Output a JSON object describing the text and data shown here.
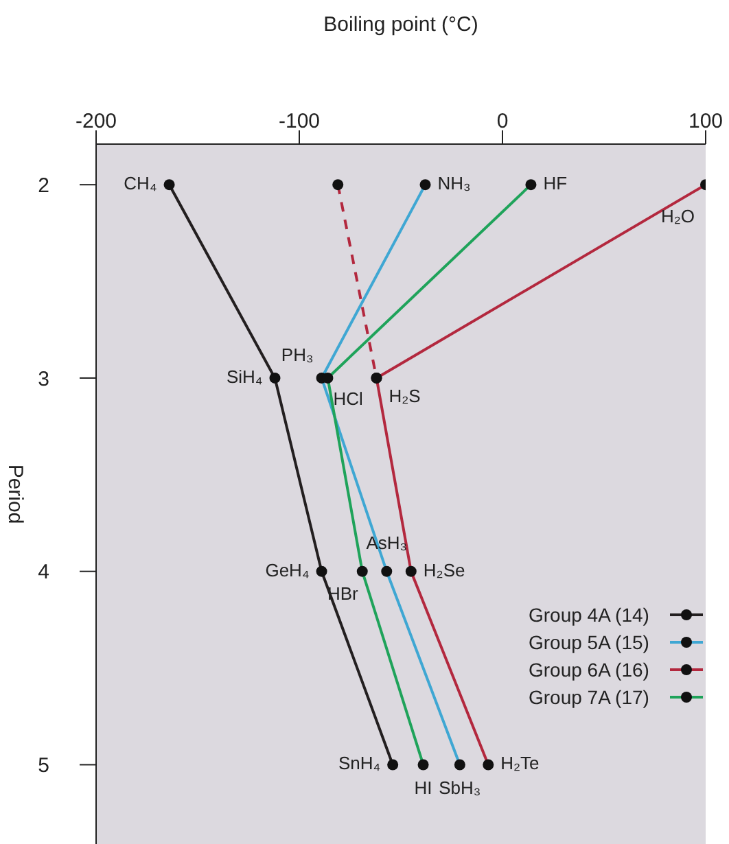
{
  "chart_data": {
    "type": "line",
    "orientation": "horizontal",
    "xlabel": "Boiling point (°C)",
    "ylabel": "Period",
    "categories": [
      "2",
      "3",
      "4",
      "5"
    ],
    "xlim": [
      -200,
      100
    ],
    "xticks": [
      -200,
      -100,
      0,
      100
    ],
    "grid": false,
    "legend": "bottom right",
    "marker": "circle",
    "series": [
      {
        "name": "Group 4A (14)",
        "color": "#231f20",
        "values": [
          -164,
          -112,
          -89,
          -54
        ]
      },
      {
        "name": "Group 5A (15)",
        "color": "#3fa7d3",
        "values": [
          -38,
          -89,
          -57,
          -21
        ]
      },
      {
        "name": "Group 6A (16)",
        "color": "#b3283e",
        "values": [
          100,
          -62,
          -45,
          -7
        ]
      },
      {
        "name": "Group 7A (17)",
        "color": "#1fa35a",
        "values": [
          14,
          -86,
          -69,
          -39
        ]
      },
      {
        "color": "#b3283e",
        "values": [
          -81,
          -62,
          null,
          null
        ],
        "line_style": "dashed"
      }
    ],
    "annotations": [
      {
        "text": "CH₄",
        "x": -164,
        "y": "2"
      },
      {
        "text": "NH₃",
        "x": -38,
        "y": "2"
      },
      {
        "text": "HF",
        "x": 14,
        "y": "2"
      },
      {
        "text": "H₂O",
        "x": 100,
        "y": "2"
      },
      {
        "text": "PH₃",
        "x": -89,
        "y": "3"
      },
      {
        "text": "SiH₄",
        "x": -112,
        "y": "3"
      },
      {
        "text": "HCl",
        "x": -86,
        "y": "3"
      },
      {
        "text": "H₂S",
        "x": -62,
        "y": "3"
      },
      {
        "text": "GeH₄",
        "x": -89,
        "y": "4"
      },
      {
        "text": "HBr",
        "x": -69,
        "y": "4"
      },
      {
        "text": "AsH₃",
        "x": -57,
        "y": "4"
      },
      {
        "text": "H₂Se",
        "x": -45,
        "y": "4"
      },
      {
        "text": "SnH₄",
        "x": -54,
        "y": "5"
      },
      {
        "text": "HI",
        "x": -39,
        "y": "5"
      },
      {
        "text": "SbH₃",
        "x": -21,
        "y": "5"
      },
      {
        "text": "H₂Te",
        "x": -7,
        "y": "5"
      }
    ]
  }
}
